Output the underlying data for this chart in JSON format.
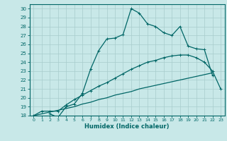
{
  "xlabel": "Humidex (Indice chaleur)",
  "bg_color": "#c8e8e8",
  "line_color": "#006666",
  "grid_color": "#a8cccc",
  "xlim": [
    -0.5,
    23.5
  ],
  "ylim": [
    18,
    30.5
  ],
  "xticks": [
    0,
    1,
    2,
    3,
    4,
    5,
    6,
    7,
    8,
    9,
    10,
    11,
    12,
    13,
    14,
    15,
    16,
    17,
    18,
    19,
    20,
    21,
    22,
    23
  ],
  "yticks": [
    18,
    19,
    20,
    21,
    22,
    23,
    24,
    25,
    26,
    27,
    28,
    29,
    30
  ],
  "top_curve_x": [
    2,
    3,
    4,
    5,
    6,
    7,
    8,
    9,
    10,
    11,
    12,
    13,
    14,
    15,
    16,
    17,
    18,
    19,
    20,
    21,
    22
  ],
  "top_curve_y": [
    18.2,
    17.8,
    19.0,
    19.3,
    20.5,
    23.2,
    25.3,
    26.6,
    26.7,
    27.1,
    30.0,
    29.5,
    28.3,
    28.0,
    27.3,
    27.0,
    28.0,
    25.8,
    25.5,
    25.4,
    22.5
  ],
  "mid_curve_x": [
    0,
    1,
    2,
    3,
    4,
    5,
    6,
    7,
    8,
    9,
    10,
    11,
    12,
    13,
    14,
    15,
    16,
    17,
    18,
    19,
    20,
    21,
    22,
    23
  ],
  "mid_curve_y": [
    18.0,
    18.5,
    18.5,
    18.5,
    19.2,
    19.8,
    20.3,
    20.8,
    21.3,
    21.7,
    22.2,
    22.7,
    23.2,
    23.6,
    24.0,
    24.2,
    24.5,
    24.7,
    24.8,
    24.8,
    24.5,
    24.0,
    23.0,
    21.0
  ],
  "low_curve_x": [
    0,
    1,
    2,
    3,
    4,
    5,
    6,
    7,
    8,
    9,
    10,
    11,
    12,
    13,
    14,
    15,
    16,
    17,
    18,
    19,
    20,
    21,
    22
  ],
  "low_curve_y": [
    18.0,
    18.2,
    18.4,
    18.6,
    18.8,
    19.0,
    19.3,
    19.5,
    19.8,
    20.0,
    20.3,
    20.5,
    20.7,
    21.0,
    21.2,
    21.4,
    21.6,
    21.8,
    22.0,
    22.2,
    22.4,
    22.6,
    22.8
  ]
}
